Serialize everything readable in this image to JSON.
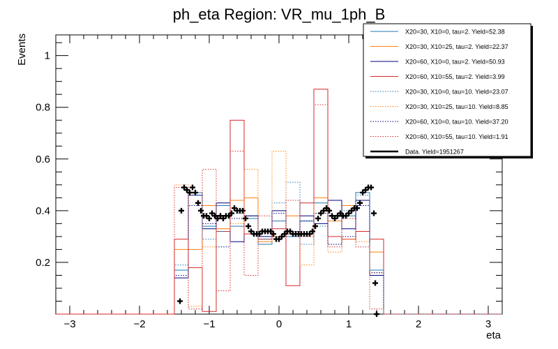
{
  "chart_data": {
    "type": "step-histogram",
    "title": "ph_eta Region: VR_mu_1ph_B",
    "xlabel": "eta",
    "ylabel": "Events",
    "xlim": [
      -3.2,
      3.2
    ],
    "ylim": [
      0,
      1.08
    ],
    "x_ticks": [
      -3,
      -2,
      -1,
      0,
      1,
      2,
      3
    ],
    "x_tick_labels": [
      "−3",
      "−2",
      "−1",
      "0",
      "1",
      "2",
      "3"
    ],
    "y_ticks": [
      0.2,
      0.4,
      0.6,
      0.8,
      1.0
    ],
    "y_tick_labels": [
      "0.2",
      "0.4",
      "0.6",
      "0.8",
      "1"
    ],
    "bin_edges": [
      -1.5,
      -1.3,
      -1.1,
      -0.9,
      -0.7,
      -0.5,
      -0.3,
      -0.1,
      0.1,
      0.3,
      0.5,
      0.7,
      0.9,
      1.1,
      1.3,
      1.5
    ],
    "legend_position": "top-right",
    "series": [
      {
        "name": "X20=30, X10=0, tau=2. Yield=52.38",
        "color": "#1f77b4",
        "style": "solid",
        "values": [
          0.17,
          0.47,
          0.34,
          0.42,
          0.34,
          0.37,
          0.27,
          0.36,
          0.3,
          0.36,
          0.43,
          0.38,
          0.38,
          0.47,
          0.17
        ]
      },
      {
        "name": "X20=30, X10=25, tau=2. Yield=22.37",
        "color": "#ff7f0e",
        "style": "solid",
        "values": [
          0.25,
          0.25,
          0.42,
          0.33,
          0.44,
          0.45,
          0.28,
          0.3,
          0.38,
          0.31,
          0.45,
          0.36,
          0.42,
          0.44,
          0.24
        ]
      },
      {
        "name": "X20=60, X10=0, tau=2. Yield=50.93",
        "color": "#000080",
        "style": "solid",
        "values": [
          0.14,
          0.46,
          0.33,
          0.43,
          0.28,
          0.38,
          0.3,
          0.4,
          0.31,
          0.38,
          0.35,
          0.44,
          0.33,
          0.44,
          0.15
        ]
      },
      {
        "name": "X20=60, X10=55, tau=2. Yield=3.99",
        "color": "#d62728",
        "style": "solid",
        "values": [
          0.29,
          0.18,
          0.01,
          0.32,
          0.75,
          0.31,
          0.29,
          0.33,
          0.11,
          0.43,
          0.87,
          0.3,
          0.29,
          0.32,
          0.29
        ]
      },
      {
        "name": "X20=30, X10=0, tau=10. Yield=23.07",
        "color": "#1f77b4",
        "style": "dotted",
        "values": [
          0.19,
          0.46,
          0.29,
          0.32,
          0.39,
          0.37,
          0.29,
          0.43,
          0.51,
          0.27,
          0.34,
          0.27,
          0.4,
          0.46,
          0.17
        ]
      },
      {
        "name": "X20=30, X10=25, tau=10. Yield=8.85",
        "color": "#ff7f0e",
        "style": "dotted",
        "values": [
          0.5,
          0.03,
          0.26,
          0.33,
          0.35,
          0.56,
          0.32,
          0.63,
          0.31,
          0.19,
          0.39,
          0.24,
          0.29,
          0.28,
          0.16
        ]
      },
      {
        "name": "X20=60, X10=0, tau=10. Yield=37.20",
        "color": "#000080",
        "style": "dotted",
        "values": [
          0.15,
          0.42,
          0.35,
          0.26,
          0.37,
          0.38,
          0.32,
          0.39,
          0.32,
          0.36,
          0.39,
          0.27,
          0.3,
          0.42,
          0.16
        ]
      },
      {
        "name": "X20=60, X10=55, tau=10. Yield=1.91",
        "color": "#d62728",
        "style": "dotted",
        "values": [
          0.49,
          0.02,
          0.56,
          0.09,
          0.63,
          0.15,
          0.38,
          0.3,
          0.44,
          0.3,
          0.81,
          0.26,
          0.37,
          0.26,
          0.02
        ]
      }
    ],
    "data_series": {
      "name": "Data. Yield=1951267",
      "color": "#000000",
      "points": [
        [
          -1.42,
          0.05
        ],
        [
          -1.4,
          0.4
        ],
        [
          -1.36,
          0.49
        ],
        [
          -1.32,
          0.48
        ],
        [
          -1.28,
          0.47
        ],
        [
          -1.24,
          0.49
        ],
        [
          -1.2,
          0.47
        ],
        [
          -1.16,
          0.43
        ],
        [
          -1.12,
          0.4
        ],
        [
          -1.08,
          0.38
        ],
        [
          -1.04,
          0.38
        ],
        [
          -1.0,
          0.37
        ],
        [
          -0.96,
          0.39
        ],
        [
          -0.92,
          0.38
        ],
        [
          -0.88,
          0.37
        ],
        [
          -0.84,
          0.38
        ],
        [
          -0.8,
          0.37
        ],
        [
          -0.76,
          0.38
        ],
        [
          -0.72,
          0.38
        ],
        [
          -0.68,
          0.39
        ],
        [
          -0.64,
          0.41
        ],
        [
          -0.6,
          0.4
        ],
        [
          -0.56,
          0.4
        ],
        [
          -0.52,
          0.4
        ],
        [
          -0.48,
          0.37
        ],
        [
          -0.44,
          0.34
        ],
        [
          -0.4,
          0.32
        ],
        [
          -0.36,
          0.31
        ],
        [
          -0.32,
          0.31
        ],
        [
          -0.28,
          0.31
        ],
        [
          -0.24,
          0.32
        ],
        [
          -0.2,
          0.32
        ],
        [
          -0.16,
          0.32
        ],
        [
          -0.12,
          0.32
        ],
        [
          -0.08,
          0.31
        ],
        [
          -0.04,
          0.29
        ],
        [
          0.0,
          0.29
        ],
        [
          0.04,
          0.3
        ],
        [
          0.08,
          0.31
        ],
        [
          0.12,
          0.32
        ],
        [
          0.16,
          0.32
        ],
        [
          0.2,
          0.31
        ],
        [
          0.24,
          0.31
        ],
        [
          0.28,
          0.31
        ],
        [
          0.32,
          0.31
        ],
        [
          0.36,
          0.31
        ],
        [
          0.4,
          0.31
        ],
        [
          0.44,
          0.31
        ],
        [
          0.48,
          0.32
        ],
        [
          0.52,
          0.34
        ],
        [
          0.56,
          0.37
        ],
        [
          0.6,
          0.39
        ],
        [
          0.64,
          0.4
        ],
        [
          0.68,
          0.41
        ],
        [
          0.72,
          0.4
        ],
        [
          0.76,
          0.38
        ],
        [
          0.8,
          0.37
        ],
        [
          0.84,
          0.38
        ],
        [
          0.88,
          0.39
        ],
        [
          0.92,
          0.38
        ],
        [
          0.96,
          0.38
        ],
        [
          1.0,
          0.39
        ],
        [
          1.04,
          0.4
        ],
        [
          1.08,
          0.41
        ],
        [
          1.12,
          0.41
        ],
        [
          1.16,
          0.43
        ],
        [
          1.2,
          0.47
        ],
        [
          1.24,
          0.48
        ],
        [
          1.28,
          0.49
        ],
        [
          1.32,
          0.49
        ],
        [
          1.36,
          0.39
        ],
        [
          1.38,
          0.12
        ],
        [
          1.4,
          0.0
        ]
      ]
    }
  }
}
